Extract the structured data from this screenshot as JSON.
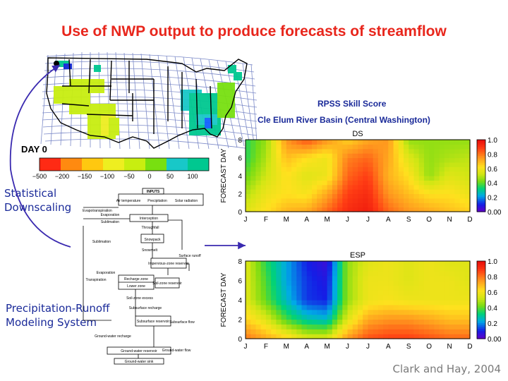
{
  "slide": {
    "title": "Use of NWP output to produce forecasts of streamflow",
    "credit": "Clark and Hay, 2004",
    "labels": {
      "statistical": [
        "Statistical",
        "Downscaling"
      ],
      "prms": [
        "Precipitation-Runoff",
        "Modeling System"
      ]
    },
    "skill": {
      "heading": "RPSS Skill Score",
      "basin": "Cle Elum River Basin (Central Washington)"
    }
  },
  "map": {
    "day_label": "DAY 0",
    "legend_values": [
      "−500",
      "−200",
      "−150",
      "−100",
      "−50",
      "0",
      "50",
      "100"
    ],
    "legend_colors": [
      "#ff2a14",
      "#ff8a10",
      "#ffc810",
      "#eeee20",
      "#c8ee10",
      "#78e010",
      "#18c8c8",
      "#00c890"
    ]
  },
  "flowchart": {
    "boxes": {
      "inputs": "INPUTS",
      "air_temperature": "Air temperature",
      "precipitation": "Precipitation",
      "solar_radiation": "Solar radiation",
      "interception": "Interception",
      "snowpack": "Snowpack",
      "impervious_reservoir": "Impervious-zone reservoir",
      "recharge_zone": "Recharge zone",
      "lower_zone": "Lower zone",
      "soil_zone_reservoir": "Soil-zone reservoir",
      "subsurface_reservoir": "Subsurface reservoir",
      "groundwater_reservoir": "Ground-water reservoir",
      "groundwater_sink": "Ground-water sink"
    },
    "annotations": {
      "evapotranspiration": "Evapotranspiration",
      "evaporation": "Evaporation",
      "sublimation": "Sublimation",
      "transpiration": "Transpiration",
      "throughfall": "Throughfall",
      "snowmelt": "Snowmelt",
      "surface_runoff": "Surface runoff",
      "soil_zone_excess": "Soil-zone excess",
      "subsurface_recharge": "Subsurface recharge",
      "subsurface_flow": "Subsurface flow",
      "groundwater_recharge": "Ground-water recharge",
      "groundwater_flow": "Ground-water flow"
    }
  },
  "chart_data": [
    {
      "type": "heatmap",
      "title": "DS",
      "ylabel": "FORECAST DAY",
      "xlabel": "",
      "x_categories": [
        "J",
        "F",
        "M",
        "A",
        "M",
        "J",
        "J",
        "A",
        "S",
        "O",
        "N",
        "D"
      ],
      "y_ticks": [
        0,
        2,
        4,
        6,
        8
      ],
      "ylim": [
        0,
        8
      ],
      "colorbar": {
        "min": 0.0,
        "max": 1.0,
        "ticks": [
          "1.0",
          "0.8",
          "0.6",
          "0.4",
          "0.2",
          "0.00"
        ]
      },
      "rows": [
        {
          "day": 8,
          "values": [
            0.35,
            0.45,
            0.75,
            0.85,
            0.75,
            0.65,
            0.72,
            0.75,
            0.45,
            0.45,
            0.45,
            0.45
          ]
        },
        {
          "day": 6,
          "values": [
            0.35,
            0.48,
            0.68,
            0.62,
            0.58,
            0.78,
            0.82,
            0.72,
            0.55,
            0.45,
            0.48,
            0.5
          ]
        },
        {
          "day": 4,
          "values": [
            0.4,
            0.52,
            0.62,
            0.55,
            0.58,
            0.82,
            0.88,
            0.7,
            0.62,
            0.45,
            0.55,
            0.52
          ]
        },
        {
          "day": 2,
          "values": [
            0.48,
            0.58,
            0.62,
            0.6,
            0.72,
            0.88,
            0.92,
            0.75,
            0.68,
            0.62,
            0.62,
            0.58
          ]
        },
        {
          "day": 0,
          "values": [
            0.55,
            0.62,
            0.7,
            0.72,
            0.82,
            0.92,
            0.95,
            0.82,
            0.75,
            0.72,
            0.68,
            0.65
          ]
        }
      ]
    },
    {
      "type": "heatmap",
      "title": "ESP",
      "ylabel": "FORECAST DAY",
      "xlabel": "",
      "x_categories": [
        "J",
        "F",
        "M",
        "A",
        "M",
        "J",
        "J",
        "A",
        "S",
        "O",
        "N",
        "D"
      ],
      "y_ticks": [
        0,
        2,
        4,
        6,
        8
      ],
      "ylim": [
        0,
        8
      ],
      "colorbar": {
        "min": 0.0,
        "max": 1.0,
        "ticks": [
          "1.0",
          "0.8",
          "0.6",
          "0.4",
          "0.2",
          "0.00"
        ]
      },
      "rows": [
        {
          "day": 8,
          "values": [
            0.55,
            0.35,
            0.22,
            0.1,
            0.05,
            0.45,
            0.55,
            0.58,
            0.55,
            0.58,
            0.55,
            0.55
          ]
        },
        {
          "day": 6,
          "values": [
            0.55,
            0.38,
            0.22,
            0.12,
            0.08,
            0.45,
            0.58,
            0.58,
            0.55,
            0.58,
            0.58,
            0.55
          ]
        },
        {
          "day": 4,
          "values": [
            0.55,
            0.4,
            0.25,
            0.12,
            0.1,
            0.45,
            0.58,
            0.6,
            0.58,
            0.58,
            0.58,
            0.58
          ]
        },
        {
          "day": 2,
          "values": [
            0.65,
            0.55,
            0.38,
            0.28,
            0.25,
            0.55,
            0.72,
            0.75,
            0.75,
            0.72,
            0.68,
            0.68
          ]
        },
        {
          "day": 0,
          "values": [
            0.8,
            0.72,
            0.65,
            0.55,
            0.55,
            0.75,
            0.85,
            0.88,
            0.88,
            0.85,
            0.82,
            0.82
          ]
        }
      ]
    }
  ]
}
